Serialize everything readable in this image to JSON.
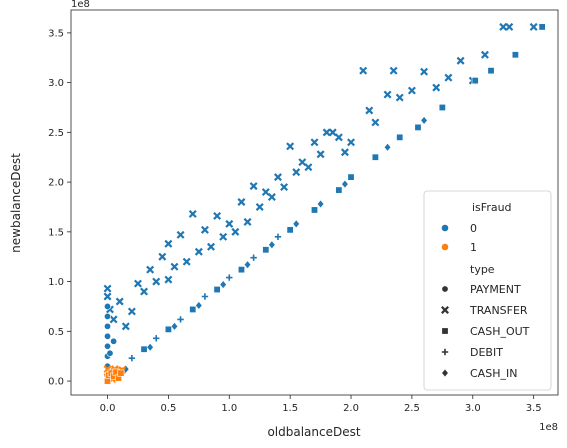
{
  "chart_data": {
    "type": "scatter",
    "xlabel": "oldbalanceDest",
    "ylabel": "newbalanceDest",
    "x_offset_text": "1e8",
    "y_offset_text": "1e8",
    "xlim": [
      -0.3,
      3.7
    ],
    "ylim": [
      -0.14,
      3.73
    ],
    "x_ticks": [
      0.0,
      0.5,
      1.0,
      1.5,
      2.0,
      2.5,
      3.0,
      3.5
    ],
    "x_tick_labels": [
      "0.0",
      "0.5",
      "1.0",
      "1.5",
      "2.0",
      "2.5",
      "3.0",
      "3.5"
    ],
    "y_ticks": [
      0.0,
      0.5,
      1.0,
      1.5,
      2.0,
      2.5,
      3.0,
      3.5
    ],
    "y_tick_labels": [
      "0.0",
      "0.5",
      "1.0",
      "1.5",
      "2.0",
      "2.5",
      "3.0",
      "3.5"
    ],
    "grid": false,
    "legend": {
      "placement": "lower-right",
      "hue_title": "isFraud",
      "hue_entries": [
        {
          "label": "0",
          "color": "#1f77b4"
        },
        {
          "label": "1",
          "color": "#ff7f0e"
        }
      ],
      "style_title": "type",
      "style_entries": [
        {
          "label": "PAYMENT",
          "marker": "circle"
        },
        {
          "label": "TRANSFER",
          "marker": "x"
        },
        {
          "label": "CASH_OUT",
          "marker": "square"
        },
        {
          "label": "DEBIT",
          "marker": "plus"
        },
        {
          "label": "CASH_IN",
          "marker": "diamond"
        }
      ]
    },
    "series": [
      {
        "isFraud": "0",
        "type": "TRANSFER",
        "color": "#1f77b4",
        "marker": "x",
        "points": [
          [
            0.0,
            0.93
          ],
          [
            0.0,
            0.85
          ],
          [
            0.02,
            0.72
          ],
          [
            0.05,
            0.62
          ],
          [
            0.1,
            0.8
          ],
          [
            0.15,
            0.55
          ],
          [
            0.2,
            0.7
          ],
          [
            0.25,
            0.98
          ],
          [
            0.3,
            0.9
          ],
          [
            0.35,
            1.12
          ],
          [
            0.4,
            1.0
          ],
          [
            0.45,
            1.25
          ],
          [
            0.5,
            1.02
          ],
          [
            0.5,
            1.38
          ],
          [
            0.55,
            1.15
          ],
          [
            0.6,
            1.47
          ],
          [
            0.65,
            1.2
          ],
          [
            0.7,
            1.68
          ],
          [
            0.75,
            1.3
          ],
          [
            0.8,
            1.52
          ],
          [
            0.85,
            1.35
          ],
          [
            0.9,
            1.66
          ],
          [
            0.95,
            1.45
          ],
          [
            1.0,
            1.58
          ],
          [
            1.05,
            1.5
          ],
          [
            1.1,
            1.8
          ],
          [
            1.15,
            1.6
          ],
          [
            1.2,
            1.96
          ],
          [
            1.25,
            1.75
          ],
          [
            1.3,
            1.9
          ],
          [
            1.35,
            1.85
          ],
          [
            1.4,
            2.05
          ],
          [
            1.45,
            1.95
          ],
          [
            1.5,
            2.36
          ],
          [
            1.55,
            2.1
          ],
          [
            1.6,
            2.2
          ],
          [
            1.65,
            2.15
          ],
          [
            1.7,
            2.4
          ],
          [
            1.75,
            2.28
          ],
          [
            1.8,
            2.5
          ],
          [
            1.85,
            2.5
          ],
          [
            1.9,
            2.45
          ],
          [
            1.95,
            2.3
          ],
          [
            2.0,
            2.4
          ],
          [
            2.1,
            3.12
          ],
          [
            2.15,
            2.72
          ],
          [
            2.2,
            2.6
          ],
          [
            2.3,
            2.88
          ],
          [
            2.35,
            3.12
          ],
          [
            2.4,
            2.85
          ],
          [
            2.5,
            2.92
          ],
          [
            2.6,
            3.11
          ],
          [
            2.7,
            2.95
          ],
          [
            2.8,
            3.05
          ],
          [
            2.9,
            3.22
          ],
          [
            3.0,
            3.02
          ],
          [
            3.1,
            3.28
          ],
          [
            3.25,
            3.56
          ],
          [
            3.3,
            3.56
          ],
          [
            3.5,
            3.56
          ]
        ]
      },
      {
        "isFraud": "0",
        "type": "CASH_OUT",
        "color": "#1f77b4",
        "marker": "square",
        "points": [
          [
            0.1,
            0.1
          ],
          [
            0.3,
            0.32
          ],
          [
            0.5,
            0.52
          ],
          [
            0.7,
            0.72
          ],
          [
            0.9,
            0.92
          ],
          [
            1.1,
            1.12
          ],
          [
            1.3,
            1.32
          ],
          [
            1.5,
            1.52
          ],
          [
            1.7,
            1.72
          ],
          [
            1.9,
            1.92
          ],
          [
            2.0,
            2.05
          ],
          [
            2.2,
            2.25
          ],
          [
            2.4,
            2.45
          ],
          [
            2.55,
            2.55
          ],
          [
            2.75,
            2.75
          ],
          [
            3.02,
            3.02
          ],
          [
            3.15,
            3.12
          ],
          [
            3.35,
            3.28
          ],
          [
            3.57,
            3.56
          ]
        ]
      },
      {
        "isFraud": "0",
        "type": "PAYMENT",
        "color": "#1f77b4",
        "marker": "circle",
        "points": [
          [
            0.0,
            0.05
          ],
          [
            0.0,
            0.15
          ],
          [
            0.0,
            0.25
          ],
          [
            0.0,
            0.35
          ],
          [
            0.0,
            0.45
          ],
          [
            0.0,
            0.55
          ],
          [
            0.0,
            0.65
          ],
          [
            0.0,
            0.75
          ],
          [
            0.02,
            0.28
          ],
          [
            0.05,
            0.4
          ]
        ]
      },
      {
        "isFraud": "0",
        "type": "DEBIT",
        "color": "#1f77b4",
        "marker": "plus",
        "points": [
          [
            0.05,
            0.08
          ],
          [
            0.2,
            0.23
          ],
          [
            0.4,
            0.43
          ],
          [
            0.6,
            0.62
          ],
          [
            0.8,
            0.85
          ],
          [
            1.0,
            1.04
          ],
          [
            1.2,
            1.24
          ],
          [
            1.4,
            1.45
          ]
        ]
      },
      {
        "isFraud": "0",
        "type": "CASH_IN",
        "color": "#1f77b4",
        "marker": "diamond",
        "points": [
          [
            0.15,
            0.12
          ],
          [
            0.35,
            0.34
          ],
          [
            0.55,
            0.55
          ],
          [
            0.75,
            0.76
          ],
          [
            0.95,
            0.97
          ],
          [
            1.15,
            1.17
          ],
          [
            1.35,
            1.37
          ],
          [
            1.55,
            1.58
          ],
          [
            1.75,
            1.78
          ],
          [
            1.95,
            1.98
          ],
          [
            2.3,
            2.35
          ],
          [
            2.6,
            2.62
          ]
        ]
      },
      {
        "isFraud": "1",
        "type": "TRANSFER",
        "color": "#ff7f0e",
        "marker": "x",
        "points": [
          [
            0.0,
            0.12
          ],
          [
            0.0,
            0.04
          ],
          [
            0.02,
            0.1
          ],
          [
            0.04,
            0.02
          ],
          [
            0.06,
            0.12
          ],
          [
            0.08,
            0.06
          ],
          [
            0.1,
            0.1
          ],
          [
            0.12,
            0.11
          ]
        ]
      },
      {
        "isFraud": "1",
        "type": "CASH_OUT",
        "color": "#ff7f0e",
        "marker": "square",
        "points": [
          [
            0.0,
            0.0
          ],
          [
            0.01,
            0.06
          ],
          [
            0.03,
            0.08
          ],
          [
            0.05,
            0.05
          ],
          [
            0.07,
            0.09
          ],
          [
            0.09,
            0.03
          ],
          [
            0.11,
            0.08
          ]
        ]
      }
    ]
  }
}
